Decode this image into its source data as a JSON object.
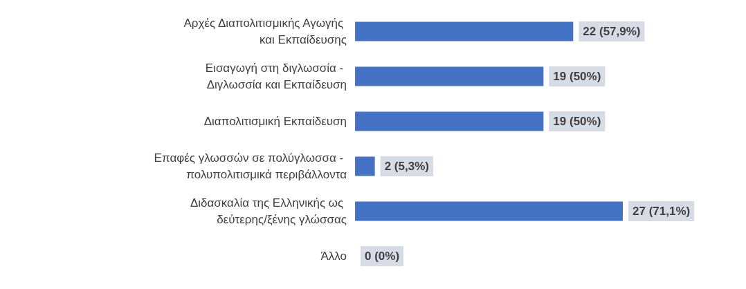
{
  "chart_data": {
    "type": "bar",
    "orientation": "horizontal",
    "categories": [
      "Αρχές Διαπολιτισμικής Αγωγής και Εκπαίδευσης",
      "Εισαγωγή στη διγλωσσία - Διγλωσσία και Εκπαίδευση",
      "Διαπολιτισμική Εκπαίδευση",
      "Επαφές γλωσσών σε πολύγλωσσα - πολυπολιτισμικά περιβάλλοντα",
      "Διδασκαλία της Ελληνικής ως δεύτερης/ξένης γλώσσας",
      "Άλλο"
    ],
    "values": [
      22,
      19,
      19,
      2,
      27,
      0
    ],
    "value_labels": [
      "22 (57,9%)",
      "19 (50%)",
      "19 (50%)",
      "2 (5,3%)",
      "27 (71,1%)",
      "0 (0%)"
    ],
    "color": "#4472c4",
    "tick_labels": "y"
  }
}
